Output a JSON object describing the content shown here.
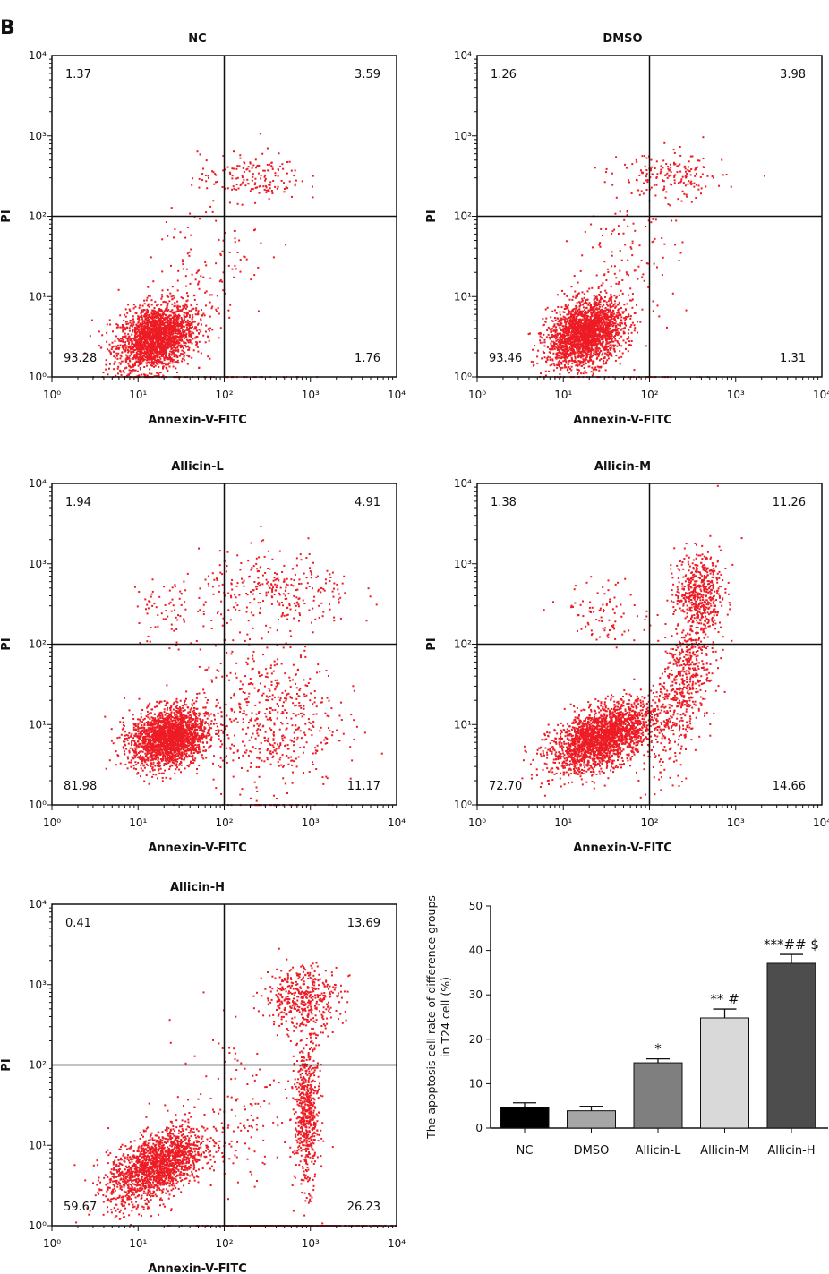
{
  "panel_label": "B",
  "chart_data": [
    {
      "type": "scatter",
      "title": "NC",
      "xlabel": "Annexin-V-FITC",
      "ylabel": "PI",
      "xscale": "log",
      "yscale": "log",
      "xlim": [
        1,
        10000
      ],
      "ylim": [
        1,
        10000
      ],
      "quadrant_gate": {
        "x": 100,
        "y": 100
      },
      "quadrants": {
        "upper_left": "1.37",
        "upper_right": "3.59",
        "lower_left": "93.28",
        "lower_right": "1.76"
      },
      "color": "#ed1c24"
    },
    {
      "type": "scatter",
      "title": "DMSO",
      "xlabel": "Annexin-V-FITC",
      "ylabel": "PI",
      "xscale": "log",
      "yscale": "log",
      "xlim": [
        1,
        10000
      ],
      "ylim": [
        1,
        10000
      ],
      "quadrant_gate": {
        "x": 100,
        "y": 100
      },
      "quadrants": {
        "upper_left": "1.26",
        "upper_right": "3.98",
        "lower_left": "93.46",
        "lower_right": "1.31"
      },
      "color": "#ed1c24"
    },
    {
      "type": "scatter",
      "title": "Allicin-L",
      "xlabel": "Annexin-V-FITC",
      "ylabel": "PI",
      "xscale": "log",
      "yscale": "log",
      "xlim": [
        1,
        10000
      ],
      "ylim": [
        1,
        10000
      ],
      "quadrant_gate": {
        "x": 100,
        "y": 100
      },
      "quadrants": {
        "upper_left": "1.94",
        "upper_right": "4.91",
        "lower_left": "81.98",
        "lower_right": "11.17"
      },
      "color": "#ed1c24"
    },
    {
      "type": "scatter",
      "title": "Allicin-M",
      "xlabel": "Annexin-V-FITC",
      "ylabel": "PI",
      "xscale": "log",
      "yscale": "log",
      "xlim": [
        1,
        10000
      ],
      "ylim": [
        1,
        10000
      ],
      "quadrant_gate": {
        "x": 100,
        "y": 100
      },
      "quadrants": {
        "upper_left": "1.38",
        "upper_right": "11.26",
        "lower_left": "72.70",
        "lower_right": "14.66"
      },
      "color": "#ed1c24"
    },
    {
      "type": "scatter",
      "title": "Allicin-H",
      "xlabel": "Annexin-V-FITC",
      "ylabel": "PI",
      "xscale": "log",
      "yscale": "log",
      "xlim": [
        1,
        10000
      ],
      "ylim": [
        1,
        10000
      ],
      "quadrant_gate": {
        "x": 100,
        "y": 100
      },
      "quadrants": {
        "upper_left": "0.41",
        "upper_right": "13.69",
        "lower_left": "59.67",
        "lower_right": "26.23"
      },
      "color": "#ed1c24"
    },
    {
      "type": "bar",
      "ylabel": "The apoptosis cell rate of difference groups in T24 cell (%)",
      "xlabel": "",
      "ylim": [
        0,
        50
      ],
      "yticks": [
        0,
        10,
        20,
        30,
        40,
        50
      ],
      "categories": [
        "NC",
        "DMSO",
        "Allicin-L",
        "Allicin-M",
        "Allicin-H"
      ],
      "values": [
        4.7,
        3.9,
        14.7,
        24.8,
        37.1
      ],
      "errors": [
        1.0,
        1.0,
        0.9,
        2.0,
        2.0
      ],
      "annotations": [
        "",
        "",
        "*",
        "** #",
        "***## $"
      ],
      "colors": [
        "#000000",
        "#a6a6a6",
        "#7f7f7f",
        "#d9d9d9",
        "#4d4d4d"
      ]
    }
  ]
}
